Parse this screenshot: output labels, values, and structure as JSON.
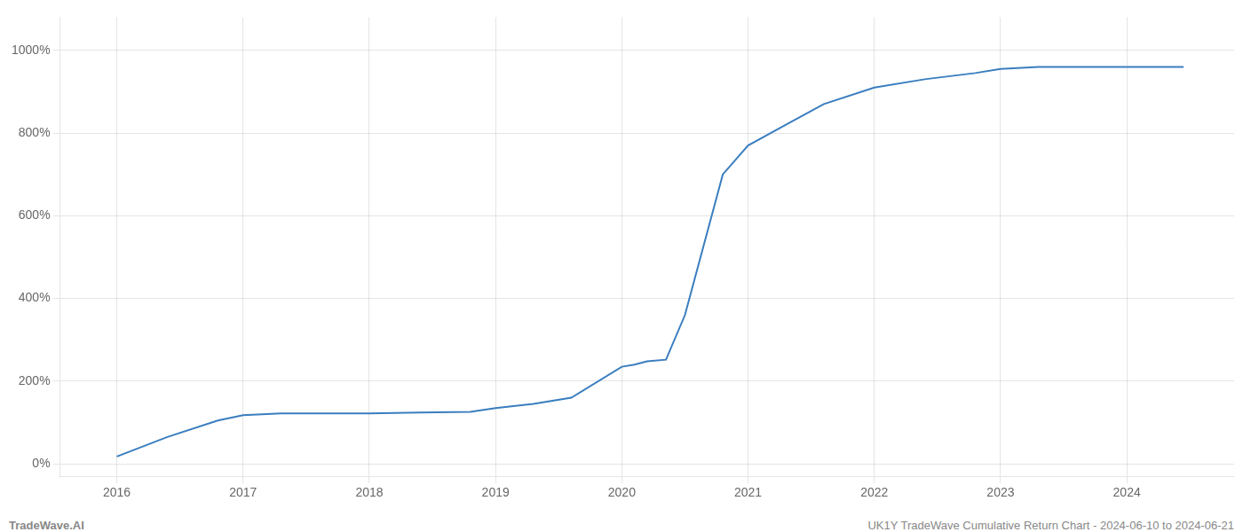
{
  "chart_data": {
    "type": "line",
    "x": [
      2016.0,
      2016.4,
      2016.8,
      2017.0,
      2017.3,
      2017.6,
      2018.0,
      2018.4,
      2018.8,
      2019.0,
      2019.3,
      2019.6,
      2020.0,
      2020.1,
      2020.2,
      2020.35,
      2020.5,
      2020.65,
      2020.8,
      2021.0,
      2021.3,
      2021.6,
      2022.0,
      2022.4,
      2022.8,
      2023.0,
      2023.3,
      2023.6,
      2024.0,
      2024.45
    ],
    "values": [
      18,
      65,
      105,
      118,
      122,
      122,
      122,
      124,
      126,
      135,
      145,
      160,
      235,
      240,
      248,
      252,
      360,
      530,
      700,
      770,
      820,
      870,
      910,
      930,
      945,
      955,
      960,
      960,
      960,
      960
    ],
    "color": "#3a7ebf",
    "xlim": [
      2015.55,
      2024.85
    ],
    "ylim": [
      -30,
      1080
    ],
    "xticks": [
      2016,
      2017,
      2018,
      2019,
      2020,
      2021,
      2022,
      2023,
      2024
    ],
    "yticks": [
      {
        "value": 0,
        "label": "0%"
      },
      {
        "value": 200,
        "label": "200%"
      },
      {
        "value": 400,
        "label": "400%"
      },
      {
        "value": 600,
        "label": "600%"
      },
      {
        "value": 800,
        "label": "800%"
      },
      {
        "value": 1000,
        "label": "1000%"
      }
    ],
    "grid": true,
    "annotations": [
      "TradeWave.AI",
      "UK1Y TradeWave Cumulative Return Chart - 2024-06-10 to 2024-06-21"
    ]
  }
}
